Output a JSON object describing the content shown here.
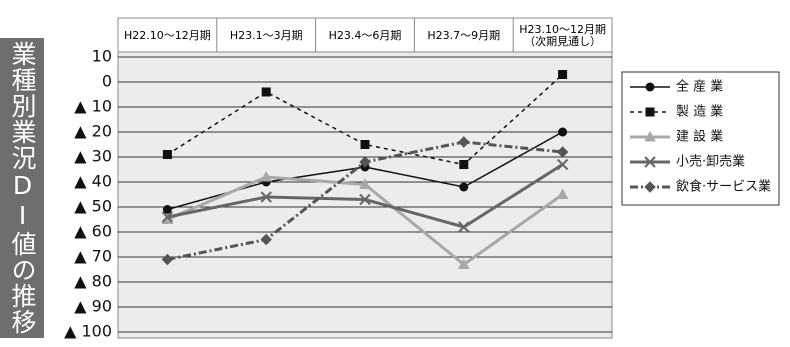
{
  "chart_data": {
    "type": "line",
    "title": "業種別業況DI値の推移",
    "categories": [
      "H22.10～12月期",
      "H23.1～3月期",
      "H23.4～6月期",
      "H23.7～9月期",
      "H23.10～12月期\n（次期見通し）"
    ],
    "ylim": [
      -100,
      10
    ],
    "yticks": [
      10,
      0,
      {
        "value": -10,
        "label": "▲ 10"
      },
      {
        "value": -20,
        "label": "▲ 20"
      },
      {
        "value": -30,
        "label": "▲ 30"
      },
      {
        "value": -40,
        "label": "▲ 40"
      },
      {
        "value": -50,
        "label": "▲ 50"
      },
      {
        "value": -60,
        "label": "▲ 60"
      },
      {
        "value": -70,
        "label": "▲ 70"
      },
      {
        "value": -80,
        "label": "▲ 80"
      },
      {
        "value": -90,
        "label": "▲ 90"
      },
      {
        "value": -100,
        "label": "▲ 100"
      }
    ],
    "grid": true,
    "legend": "right",
    "series": [
      {
        "name": "全 産 業",
        "color": "#111111",
        "marker": "circle",
        "dash": "solid",
        "values": [
          -51,
          -40,
          -34,
          -42,
          -20
        ]
      },
      {
        "name": "製 造 業",
        "color": "#111111",
        "marker": "square",
        "dash": "dashed",
        "values": [
          -29,
          -4,
          -25,
          -33,
          3
        ]
      },
      {
        "name": "建 設 業",
        "color": "#a8a8a8",
        "marker": "triangle",
        "dash": "solid",
        "values": [
          -55,
          -38,
          -41,
          -73,
          -45
        ]
      },
      {
        "name": "小売·卸売業",
        "color": "#666666",
        "marker": "cross",
        "dash": "solid",
        "values": [
          -54,
          -46,
          -47,
          -58,
          -33
        ]
      },
      {
        "name": "飲食·サービス業",
        "color": "#555555",
        "marker": "diamond",
        "dash": "dashdot",
        "values": [
          -71,
          -63,
          -32,
          -24,
          -28
        ]
      }
    ]
  }
}
